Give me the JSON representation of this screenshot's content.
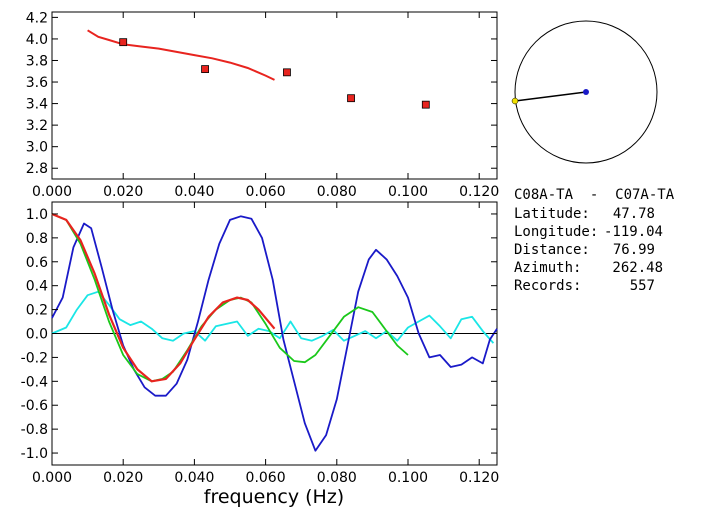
{
  "chart_data": [
    {
      "type": "scatter",
      "xlim": [
        0.0,
        0.125
      ],
      "ylim": [
        2.7,
        4.25
      ],
      "x_ticks": [
        "0.000",
        "0.020",
        "0.040",
        "0.060",
        "0.080",
        "0.100",
        "0.120"
      ],
      "y_ticks": [
        "2.8",
        "3.0",
        "3.2",
        "3.4",
        "3.6",
        "3.8",
        "4.0",
        "4.2"
      ],
      "curve": {
        "color": "#e8241f",
        "x": [
          0.01,
          0.013,
          0.016,
          0.02,
          0.025,
          0.03,
          0.035,
          0.04,
          0.045,
          0.05,
          0.055,
          0.06,
          0.0625
        ],
        "y": [
          4.08,
          4.02,
          3.99,
          3.95,
          3.93,
          3.91,
          3.88,
          3.85,
          3.82,
          3.78,
          3.73,
          3.66,
          3.62
        ]
      },
      "points": {
        "color": "#e8241f",
        "x": [
          0.02,
          0.043,
          0.066,
          0.084,
          0.105
        ],
        "y": [
          3.97,
          3.72,
          3.69,
          3.45,
          3.39
        ]
      }
    },
    {
      "type": "line",
      "xlim": [
        0.0,
        0.125
      ],
      "ylim": [
        -1.1,
        1.1
      ],
      "x_ticks": [
        "0.000",
        "0.020",
        "0.040",
        "0.060",
        "0.080",
        "0.100",
        "0.120"
      ],
      "y_ticks": [
        "1.0",
        "0.8",
        "0.6",
        "0.4",
        "0.2",
        "0.0",
        "-0.2",
        "-0.4",
        "-0.6",
        "-0.8",
        "-1.0"
      ],
      "xlabel": "frequency (Hz)",
      "series": [
        {
          "color": "#1a1ac8",
          "x": [
            0.0,
            0.003,
            0.006,
            0.009,
            0.011,
            0.014,
            0.017,
            0.02,
            0.023,
            0.026,
            0.029,
            0.032,
            0.035,
            0.038,
            0.041,
            0.044,
            0.047,
            0.05,
            0.053,
            0.056,
            0.059,
            0.062,
            0.065,
            0.068,
            0.071,
            0.074,
            0.077,
            0.08,
            0.083,
            0.086,
            0.089,
            0.091,
            0.094,
            0.097,
            0.1,
            0.103,
            0.106,
            0.109,
            0.112,
            0.115,
            0.118,
            0.121,
            0.123,
            0.125
          ],
          "y": [
            0.13,
            0.3,
            0.72,
            0.92,
            0.88,
            0.55,
            0.2,
            -0.1,
            -0.3,
            -0.45,
            -0.52,
            -0.52,
            -0.42,
            -0.22,
            0.1,
            0.45,
            0.75,
            0.95,
            0.98,
            0.96,
            0.8,
            0.45,
            -0.05,
            -0.4,
            -0.75,
            -0.98,
            -0.85,
            -0.55,
            -0.1,
            0.35,
            0.62,
            0.7,
            0.62,
            0.48,
            0.3,
            0.0,
            -0.2,
            -0.18,
            -0.28,
            -0.26,
            -0.2,
            -0.25,
            -0.05,
            0.04
          ]
        },
        {
          "color": "#e8241f",
          "x": [
            0.0,
            0.004,
            0.008,
            0.012,
            0.016,
            0.02,
            0.024,
            0.028,
            0.032,
            0.036,
            0.04,
            0.044,
            0.048,
            0.052,
            0.055,
            0.058,
            0.0625
          ],
          "y": [
            1.0,
            0.95,
            0.78,
            0.5,
            0.16,
            -0.12,
            -0.3,
            -0.4,
            -0.38,
            -0.25,
            -0.05,
            0.14,
            0.26,
            0.3,
            0.28,
            0.2,
            0.04
          ]
        },
        {
          "color": "#1ac81a",
          "x": [
            0.0,
            0.004,
            0.008,
            0.012,
            0.016,
            0.02,
            0.024,
            0.028,
            0.031,
            0.034,
            0.038,
            0.042,
            0.046,
            0.05,
            0.053,
            0.056,
            0.06,
            0.064,
            0.068,
            0.071,
            0.074,
            0.078,
            0.082,
            0.086,
            0.09,
            0.094,
            0.097,
            0.1
          ],
          "y": [
            1.0,
            0.95,
            0.75,
            0.45,
            0.1,
            -0.18,
            -0.34,
            -0.4,
            -0.38,
            -0.32,
            -0.14,
            0.06,
            0.2,
            0.28,
            0.3,
            0.26,
            0.08,
            -0.12,
            -0.23,
            -0.24,
            -0.18,
            -0.02,
            0.14,
            0.22,
            0.18,
            0.02,
            -0.1,
            -0.18
          ]
        },
        {
          "color": "#1ae6e6",
          "x": [
            0.0,
            0.004,
            0.007,
            0.01,
            0.013,
            0.016,
            0.019,
            0.022,
            0.025,
            0.028,
            0.031,
            0.034,
            0.037,
            0.04,
            0.043,
            0.046,
            0.049,
            0.052,
            0.055,
            0.058,
            0.061,
            0.064,
            0.067,
            0.07,
            0.073,
            0.076,
            0.079,
            0.082,
            0.085,
            0.088,
            0.091,
            0.094,
            0.097,
            0.1,
            0.103,
            0.106,
            0.109,
            0.112,
            0.115,
            0.118,
            0.121,
            0.124
          ],
          "y": [
            0.0,
            0.05,
            0.2,
            0.32,
            0.35,
            0.24,
            0.12,
            0.07,
            0.1,
            0.04,
            -0.04,
            -0.06,
            0.0,
            0.02,
            -0.06,
            0.06,
            0.08,
            0.1,
            -0.02,
            0.04,
            0.02,
            -0.04,
            0.1,
            -0.04,
            -0.06,
            -0.02,
            0.03,
            -0.06,
            -0.02,
            0.02,
            -0.04,
            0.02,
            -0.06,
            0.05,
            0.1,
            0.15,
            0.06,
            -0.04,
            0.12,
            0.14,
            0.02,
            -0.08
          ]
        }
      ]
    }
  ],
  "polar_marker": {
    "line_color": "#000000",
    "center_dot_color": "#1a1ac8",
    "end_dot_color": "#f0e000"
  },
  "station_info": {
    "pair": "C08A-TA  -  C07A-TA",
    "rows": [
      {
        "label": "Latitude:",
        "value": "47.78"
      },
      {
        "label": "Longitude:",
        "value": "-119.04"
      },
      {
        "label": "Distance:",
        "value": "76.99"
      },
      {
        "label": "Azimuth:",
        "value": "262.48"
      },
      {
        "label": "Records:",
        "value": "557"
      }
    ]
  }
}
